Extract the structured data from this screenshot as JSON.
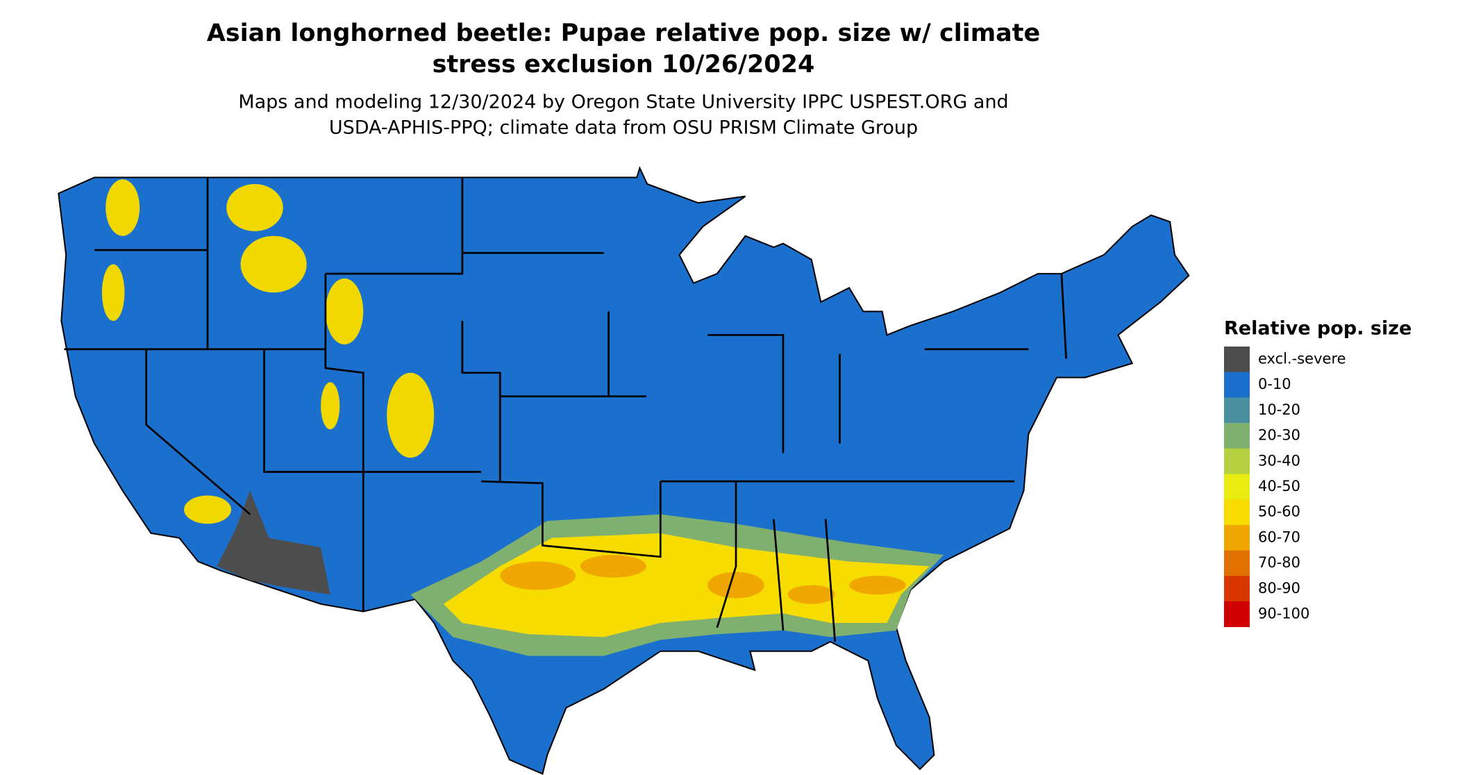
{
  "title": [
    "Asian longhorned beetle: Pupae relative pop. size w/ climate",
    "stress exclusion 10/26/2024"
  ],
  "subtitle": [
    "Maps and modeling 12/30/2024 by Oregon State University IPPC USPEST.ORG and",
    "USDA-APHIS-PPQ; climate data from OSU PRISM Climate Group"
  ],
  "legend": {
    "title": "Relative pop. size",
    "items": [
      {
        "label": "excl.-severe",
        "color": "#4d4d4d"
      },
      {
        "label": "0-10",
        "color": "#1a70cc"
      },
      {
        "label": "10-20",
        "color": "#4a90a0"
      },
      {
        "label": "20-30",
        "color": "#7fb070"
      },
      {
        "label": "30-40",
        "color": "#b5d040"
      },
      {
        "label": "40-50",
        "color": "#e8ec10"
      },
      {
        "label": "50-60",
        "color": "#f7dc00"
      },
      {
        "label": "60-70",
        "color": "#f0a800"
      },
      {
        "label": "70-80",
        "color": "#e07000"
      },
      {
        "label": "80-90",
        "color": "#d83800"
      },
      {
        "label": "90-100",
        "color": "#d00000"
      }
    ]
  }
}
